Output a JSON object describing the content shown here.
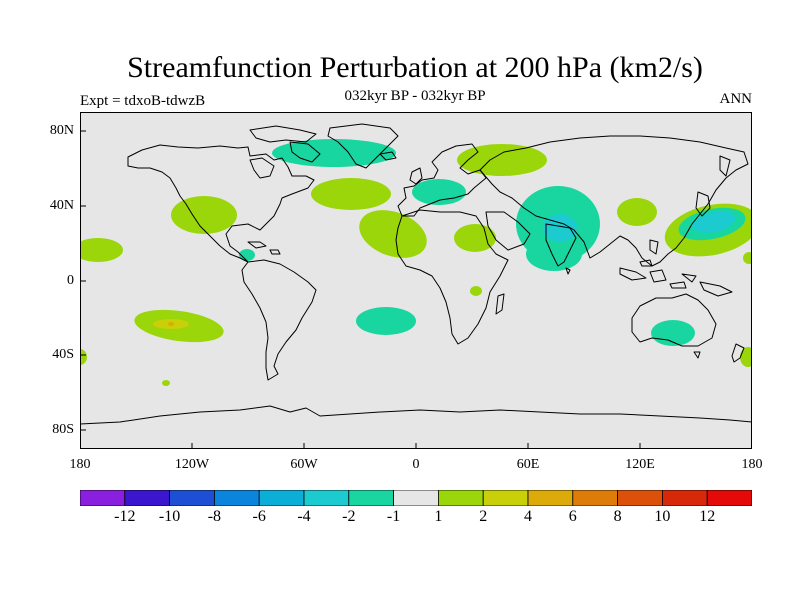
{
  "header": {
    "title": "Streamfunction Perturbation at 200 hPa (km2/s)",
    "subtitle": "032kyr BP - 032kyr BP",
    "left_label": "Expt = tdxoB-tdwzB",
    "right_label": "ANN"
  },
  "axes": {
    "lat_ticks": [
      "80N",
      "40N",
      "0",
      "40S",
      "80S"
    ],
    "lon_ticks": [
      "180",
      "120W",
      "60W",
      "0",
      "60E",
      "120E",
      "180"
    ]
  },
  "legend": {
    "labels": [
      "-12",
      "-10",
      "-8",
      "-6",
      "-4",
      "-2",
      "-1",
      "1",
      "2",
      "4",
      "6",
      "8",
      "10",
      "12"
    ],
    "colors": [
      "#8a1fe0",
      "#3b16cf",
      "#1d4fd4",
      "#0a84dc",
      "#0aaed6",
      "#1ccbcf",
      "#19d6a0",
      "#e6e6e6",
      "#9ad60a",
      "#c9d00a",
      "#dcaa09",
      "#de7c09",
      "#dc5109",
      "#d8280a",
      "#e40a0a"
    ]
  },
  "colors": {
    "background": "#e6e6e6",
    "coastline": "#000000",
    "pos_1_2": "#9ad60a",
    "pos_2_4": "#c9d00a",
    "pos_4_6": "#dcaa09",
    "neg_1_2": "#19d6a0",
    "neg_2_4": "#1ccbcf"
  }
}
